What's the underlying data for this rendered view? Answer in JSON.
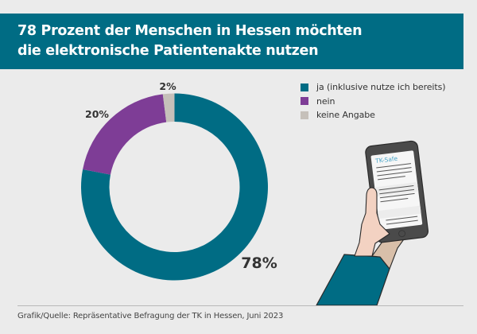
{
  "header": {
    "title_line1": "78 Prozent der Menschen in Hessen möchten",
    "title_line2": "die elektronische Patientenakte nutzen"
  },
  "legend": [
    {
      "label": "ja (inklusive nutze ich bereits)",
      "color": "#006c84"
    },
    {
      "label": "nein",
      "color": "#7e3d96"
    },
    {
      "label": "keine Angabe",
      "color": "#c6c0ba"
    }
  ],
  "illustration": {
    "app_label": "TK-Safe",
    "icon": "hand-holding-smartphone-icon"
  },
  "footer": {
    "source": "Grafik/Quelle: Repräsentative Befragung der TK in Hessen, Juni 2023"
  },
  "chart_data": {
    "type": "pie",
    "variant": "donut",
    "title": "78 Prozent der Menschen in Hessen möchten die elektronische Patientenakte nutzen",
    "categories": [
      "ja (inklusive nutze ich bereits)",
      "nein",
      "keine Angabe"
    ],
    "values": [
      78,
      20,
      2
    ],
    "labels": [
      "78%",
      "20%",
      "2%"
    ],
    "colors": [
      "#006c84",
      "#7e3d96",
      "#c6c0ba"
    ],
    "start": "12 o'clock",
    "direction": "clockwise",
    "legend_position": "top-right"
  }
}
